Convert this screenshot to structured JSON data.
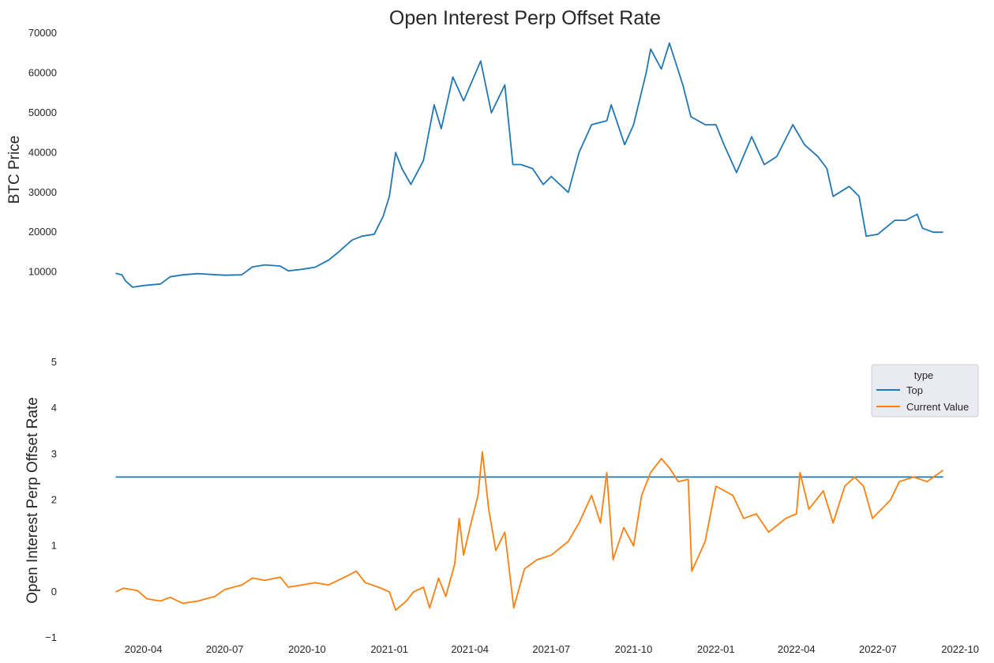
{
  "chart_data": {
    "title": "Open Interest Perp Offset Rate",
    "x_ticks": [
      "2020-04",
      "2020-07",
      "2020-10",
      "2021-01",
      "2021-04",
      "2021-07",
      "2021-10",
      "2022-01",
      "2022-04",
      "2022-07",
      "2022-10"
    ],
    "x_range": [
      "2020-01-20",
      "2022-10-15"
    ],
    "panels": [
      {
        "type": "line",
        "ylabel": "BTC  Price",
        "ylim": [
          3000,
          70000
        ],
        "y_ticks": [
          10000,
          20000,
          30000,
          40000,
          50000,
          60000,
          70000
        ],
        "grid": false,
        "series": [
          {
            "color": "#1f77b4",
            "points": [
              [
                "2020-03-01",
                9700
              ],
              [
                "2020-03-08",
                9300
              ],
              [
                "2020-03-12",
                7800
              ],
              [
                "2020-03-20",
                6200
              ],
              [
                "2020-04-01",
                6600
              ],
              [
                "2020-04-20",
                7000
              ],
              [
                "2020-05-01",
                8800
              ],
              [
                "2020-05-15",
                9300
              ],
              [
                "2020-06-01",
                9600
              ],
              [
                "2020-06-15",
                9400
              ],
              [
                "2020-07-01",
                9200
              ],
              [
                "2020-07-20",
                9300
              ],
              [
                "2020-08-01",
                11300
              ],
              [
                "2020-08-15",
                11800
              ],
              [
                "2020-09-01",
                11500
              ],
              [
                "2020-09-10",
                10300
              ],
              [
                "2020-09-25",
                10700
              ],
              [
                "2020-10-10",
                11200
              ],
              [
                "2020-10-25",
                13000
              ],
              [
                "2020-11-05",
                15000
              ],
              [
                "2020-11-20",
                18000
              ],
              [
                "2020-12-01",
                19000
              ],
              [
                "2020-12-15",
                19500
              ],
              [
                "2020-12-25",
                24000
              ],
              [
                "2021-01-01",
                29000
              ],
              [
                "2021-01-08",
                40000
              ],
              [
                "2021-01-15",
                36000
              ],
              [
                "2021-01-25",
                32000
              ],
              [
                "2021-02-08",
                38000
              ],
              [
                "2021-02-20",
                52000
              ],
              [
                "2021-02-28",
                46000
              ],
              [
                "2021-03-13",
                59000
              ],
              [
                "2021-03-25",
                53000
              ],
              [
                "2021-04-13",
                63000
              ],
              [
                "2021-04-25",
                50000
              ],
              [
                "2021-05-10",
                57000
              ],
              [
                "2021-05-19",
                37000
              ],
              [
                "2021-05-28",
                37000
              ],
              [
                "2021-06-10",
                36000
              ],
              [
                "2021-06-22",
                32000
              ],
              [
                "2021-07-01",
                34000
              ],
              [
                "2021-07-20",
                30000
              ],
              [
                "2021-08-01",
                40000
              ],
              [
                "2021-08-15",
                47000
              ],
              [
                "2021-09-01",
                48000
              ],
              [
                "2021-09-06",
                52000
              ],
              [
                "2021-09-21",
                42000
              ],
              [
                "2021-10-01",
                47000
              ],
              [
                "2021-10-15",
                60000
              ],
              [
                "2021-10-20",
                66000
              ],
              [
                "2021-11-01",
                61000
              ],
              [
                "2021-11-10",
                67500
              ],
              [
                "2021-11-25",
                57000
              ],
              [
                "2021-12-04",
                49000
              ],
              [
                "2021-12-20",
                47000
              ],
              [
                "2022-01-01",
                47000
              ],
              [
                "2022-01-10",
                42000
              ],
              [
                "2022-01-24",
                35000
              ],
              [
                "2022-02-10",
                44000
              ],
              [
                "2022-02-24",
                37000
              ],
              [
                "2022-03-10",
                39000
              ],
              [
                "2022-03-28",
                47000
              ],
              [
                "2022-04-10",
                42000
              ],
              [
                "2022-04-25",
                39000
              ],
              [
                "2022-05-05",
                36000
              ],
              [
                "2022-05-12",
                29000
              ],
              [
                "2022-05-30",
                31500
              ],
              [
                "2022-06-10",
                29000
              ],
              [
                "2022-06-18",
                19000
              ],
              [
                "2022-07-01",
                19500
              ],
              [
                "2022-07-20",
                23000
              ],
              [
                "2022-08-01",
                23000
              ],
              [
                "2022-08-14",
                24500
              ],
              [
                "2022-08-20",
                21000
              ],
              [
                "2022-09-01",
                20000
              ],
              [
                "2022-09-12",
                20000
              ]
            ]
          }
        ]
      },
      {
        "type": "line",
        "ylabel": "Open Interest Perp Offset Rate",
        "ylim": [
          -1,
          5
        ],
        "y_ticks": [
          -1,
          0,
          1,
          2,
          3,
          4,
          5
        ],
        "y_tick_labels": [
          "−1",
          "0",
          "1",
          "2",
          "3",
          "4",
          "5"
        ],
        "grid": false,
        "legend": {
          "title": "type",
          "placement": "top-right"
        },
        "series": [
          {
            "name": "Top",
            "color": "#1f77b4",
            "points": [
              [
                "2020-03-01",
                2.5
              ],
              [
                "2022-09-12",
                2.5
              ]
            ]
          },
          {
            "name": "Current Value",
            "color": "#ff7f0e",
            "points": [
              [
                "2020-03-01",
                0.0
              ],
              [
                "2020-03-10",
                0.08
              ],
              [
                "2020-03-25",
                0.03
              ],
              [
                "2020-04-05",
                -0.15
              ],
              [
                "2020-04-20",
                -0.2
              ],
              [
                "2020-05-01",
                -0.12
              ],
              [
                "2020-05-15",
                -0.25
              ],
              [
                "2020-06-01",
                -0.2
              ],
              [
                "2020-06-20",
                -0.1
              ],
              [
                "2020-07-01",
                0.05
              ],
              [
                "2020-07-20",
                0.15
              ],
              [
                "2020-08-01",
                0.3
              ],
              [
                "2020-08-15",
                0.25
              ],
              [
                "2020-09-01",
                0.32
              ],
              [
                "2020-09-10",
                0.1
              ],
              [
                "2020-09-25",
                0.15
              ],
              [
                "2020-10-10",
                0.2
              ],
              [
                "2020-10-25",
                0.15
              ],
              [
                "2020-11-10",
                0.3
              ],
              [
                "2020-11-25",
                0.45
              ],
              [
                "2020-12-05",
                0.2
              ],
              [
                "2020-12-20",
                0.1
              ],
              [
                "2021-01-01",
                0.0
              ],
              [
                "2021-01-08",
                -0.4
              ],
              [
                "2021-01-20",
                -0.2
              ],
              [
                "2021-01-28",
                0.0
              ],
              [
                "2021-02-08",
                0.1
              ],
              [
                "2021-02-15",
                -0.35
              ],
              [
                "2021-02-25",
                0.3
              ],
              [
                "2021-03-05",
                -0.1
              ],
              [
                "2021-03-15",
                0.6
              ],
              [
                "2021-03-20",
                1.6
              ],
              [
                "2021-03-25",
                0.8
              ],
              [
                "2021-04-01",
                1.4
              ],
              [
                "2021-04-10",
                2.1
              ],
              [
                "2021-04-15",
                3.05
              ],
              [
                "2021-04-22",
                1.8
              ],
              [
                "2021-04-30",
                0.9
              ],
              [
                "2021-05-10",
                1.3
              ],
              [
                "2021-05-20",
                -0.35
              ],
              [
                "2021-06-01",
                0.5
              ],
              [
                "2021-06-15",
                0.7
              ],
              [
                "2021-07-01",
                0.8
              ],
              [
                "2021-07-20",
                1.1
              ],
              [
                "2021-08-01",
                1.5
              ],
              [
                "2021-08-15",
                2.1
              ],
              [
                "2021-08-25",
                1.5
              ],
              [
                "2021-09-01",
                2.6
              ],
              [
                "2021-09-08",
                0.7
              ],
              [
                "2021-09-20",
                1.4
              ],
              [
                "2021-10-01",
                1.0
              ],
              [
                "2021-10-10",
                2.1
              ],
              [
                "2021-10-20",
                2.6
              ],
              [
                "2021-11-01",
                2.9
              ],
              [
                "2021-11-10",
                2.7
              ],
              [
                "2021-11-20",
                2.4
              ],
              [
                "2021-12-01",
                2.45
              ],
              [
                "2021-12-05",
                0.45
              ],
              [
                "2021-12-20",
                1.1
              ],
              [
                "2022-01-01",
                2.3
              ],
              [
                "2022-01-20",
                2.1
              ],
              [
                "2022-02-01",
                1.6
              ],
              [
                "2022-02-15",
                1.7
              ],
              [
                "2022-03-01",
                1.3
              ],
              [
                "2022-03-20",
                1.6
              ],
              [
                "2022-04-01",
                1.7
              ],
              [
                "2022-04-05",
                2.6
              ],
              [
                "2022-04-15",
                1.8
              ],
              [
                "2022-05-01",
                2.2
              ],
              [
                "2022-05-12",
                1.5
              ],
              [
                "2022-05-25",
                2.3
              ],
              [
                "2022-06-05",
                2.5
              ],
              [
                "2022-06-15",
                2.3
              ],
              [
                "2022-06-25",
                1.6
              ],
              [
                "2022-07-15",
                2.0
              ],
              [
                "2022-07-25",
                2.4
              ],
              [
                "2022-08-10",
                2.5
              ],
              [
                "2022-08-25",
                2.4
              ],
              [
                "2022-09-12",
                2.65
              ]
            ]
          }
        ]
      }
    ]
  }
}
